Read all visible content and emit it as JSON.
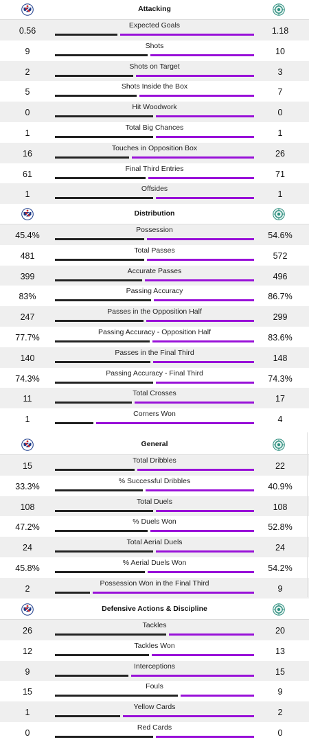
{
  "colors": {
    "home": "#222222",
    "away": "#9810d8",
    "shade": "#efefef"
  },
  "teams": {
    "home_crest": "copenhagen-crest-icon",
    "away_crest": "opponent-crest-icon"
  },
  "sections": [
    {
      "title": "Attacking",
      "rows": [
        {
          "label": "Expected Goals",
          "home": "0.56",
          "away": "1.18"
        },
        {
          "label": "Shots",
          "home": "9",
          "away": "10"
        },
        {
          "label": "Shots on Target",
          "home": "2",
          "away": "3"
        },
        {
          "label": "Shots Inside the Box",
          "home": "5",
          "away": "7"
        },
        {
          "label": "Hit Woodwork",
          "home": "0",
          "away": "0"
        },
        {
          "label": "Total Big Chances",
          "home": "1",
          "away": "1"
        },
        {
          "label": "Touches in Opposition Box",
          "home": "16",
          "away": "26"
        },
        {
          "label": "Final Third Entries",
          "home": "61",
          "away": "71"
        },
        {
          "label": "Offsides",
          "home": "1",
          "away": "1"
        }
      ]
    },
    {
      "title": "Distribution",
      "rows": [
        {
          "label": "Possession",
          "home": "45.4%",
          "away": "54.6%"
        },
        {
          "label": "Total Passes",
          "home": "481",
          "away": "572"
        },
        {
          "label": "Accurate Passes",
          "home": "399",
          "away": "496"
        },
        {
          "label": "Passing Accuracy",
          "home": "83%",
          "away": "86.7%"
        },
        {
          "label": "Passes in the Opposition Half",
          "home": "247",
          "away": "299"
        },
        {
          "label": "Passing Accuracy - Opposition Half",
          "home": "77.7%",
          "away": "83.6%"
        },
        {
          "label": "Passes in the Final Third",
          "home": "140",
          "away": "148"
        },
        {
          "label": "Passing Accuracy - Final Third",
          "home": "74.3%",
          "away": "74.3%"
        },
        {
          "label": "Total Crosses",
          "home": "11",
          "away": "17"
        },
        {
          "label": "Corners Won",
          "home": "1",
          "away": "4"
        }
      ]
    },
    {
      "title": "General",
      "rows": [
        {
          "label": "Total Dribbles",
          "home": "15",
          "away": "22"
        },
        {
          "label": "% Successful Dribbles",
          "home": "33.3%",
          "away": "40.9%"
        },
        {
          "label": "Total Duels",
          "home": "108",
          "away": "108"
        },
        {
          "label": "% Duels Won",
          "home": "47.2%",
          "away": "52.8%"
        },
        {
          "label": "Total Aerial Duels",
          "home": "24",
          "away": "24"
        },
        {
          "label": "% Aerial Duels Won",
          "home": "45.8%",
          "away": "54.2%"
        },
        {
          "label": "Possession Won in the Final Third",
          "home": "2",
          "away": "9"
        }
      ]
    },
    {
      "title": "Defensive Actions & Discipline",
      "rows": [
        {
          "label": "Tackles",
          "home": "26",
          "away": "20"
        },
        {
          "label": "Tackles Won",
          "home": "12",
          "away": "13"
        },
        {
          "label": "Interceptions",
          "home": "9",
          "away": "15"
        },
        {
          "label": "Fouls",
          "home": "15",
          "away": "9"
        },
        {
          "label": "Yellow Cards",
          "home": "1",
          "away": "2"
        },
        {
          "label": "Red Cards",
          "home": "0",
          "away": "0"
        }
      ]
    }
  ]
}
